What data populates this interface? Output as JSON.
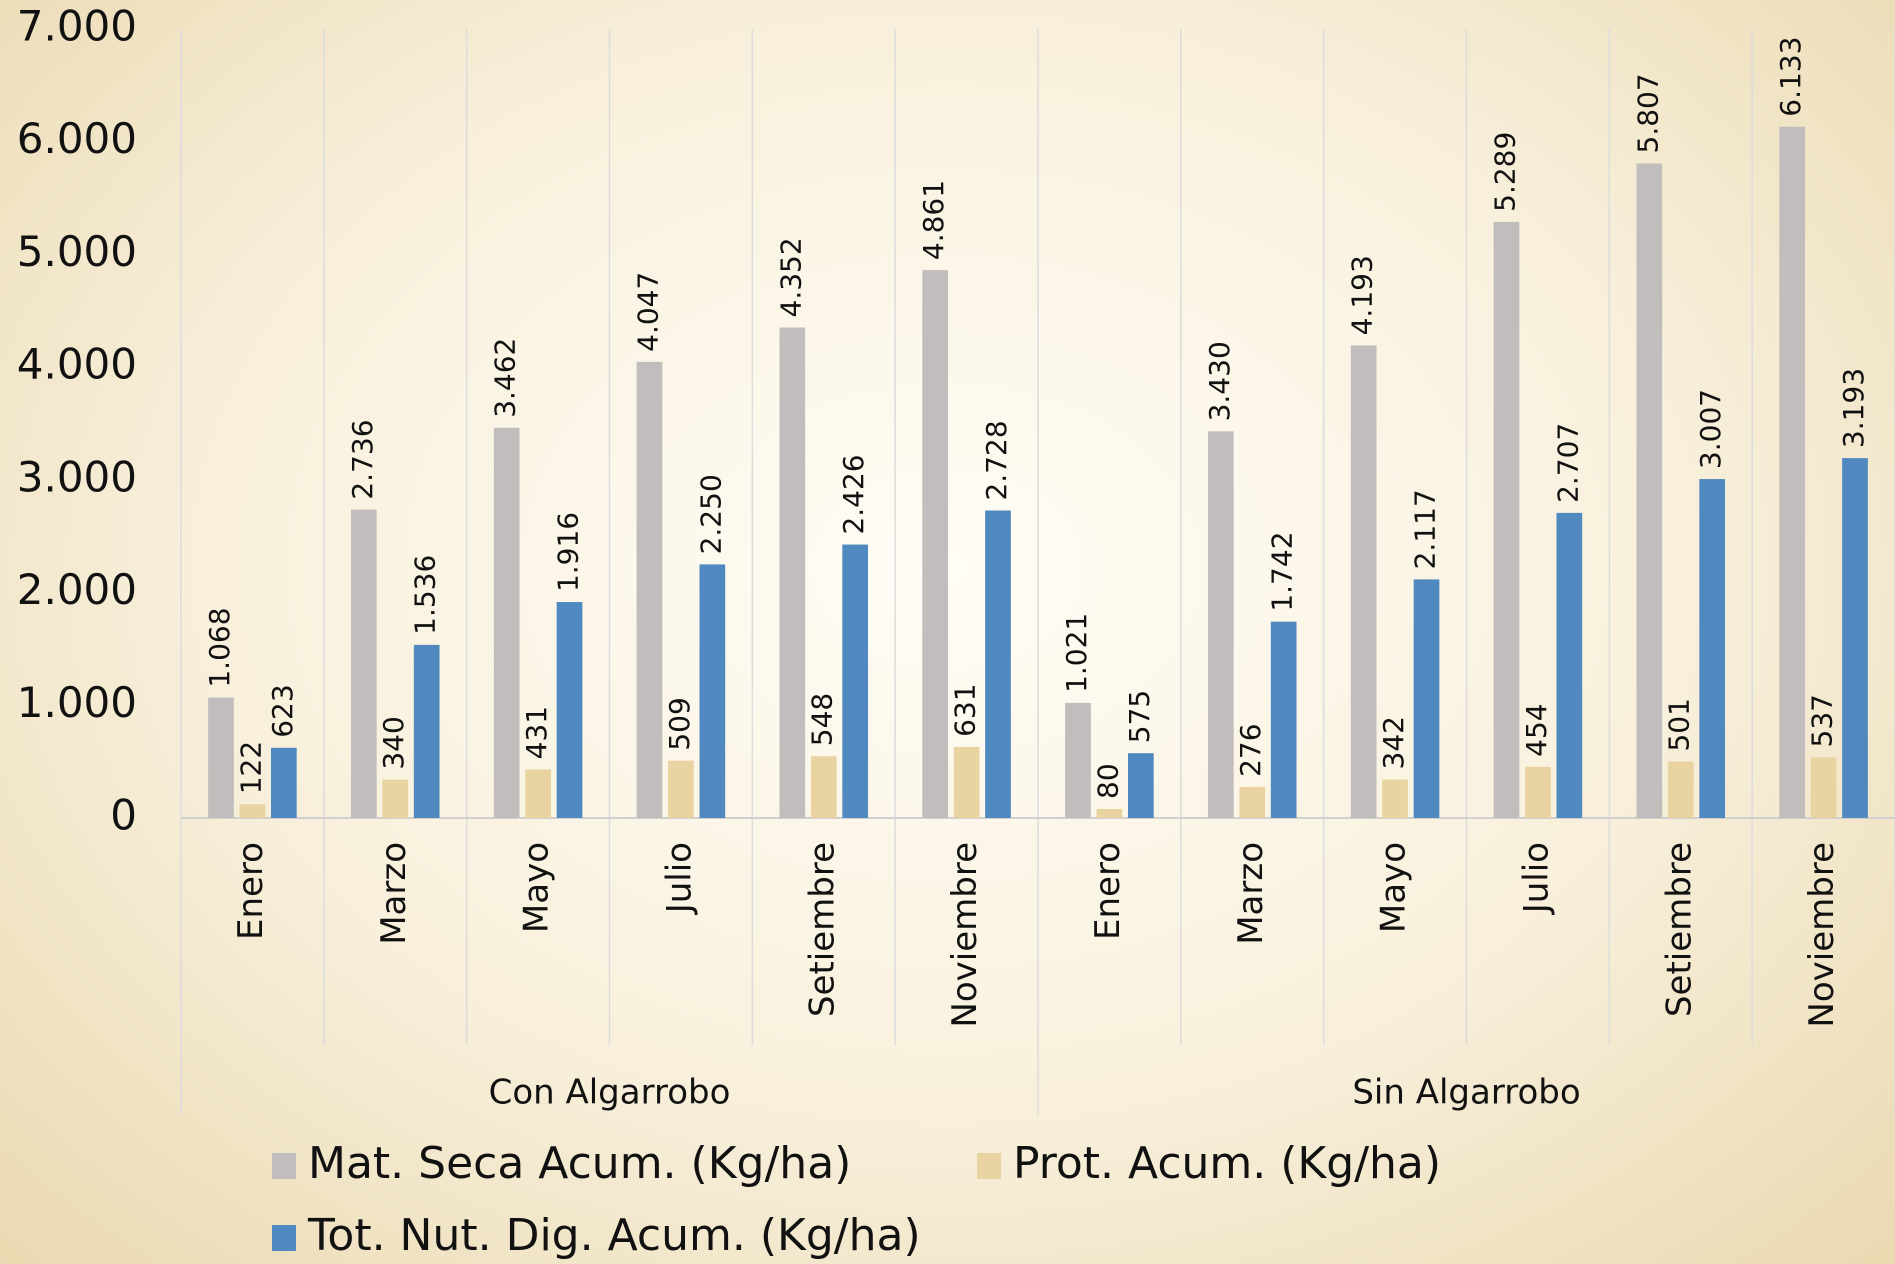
{
  "chart_data": {
    "type": "bar",
    "groups": [
      {
        "label": "Con Algarrobo",
        "categories": [
          "Enero",
          "Marzo",
          "Mayo",
          "Julio",
          "Setiembre",
          "Noviembre"
        ]
      },
      {
        "label": "Sin Algarrobo",
        "categories": [
          "Enero",
          "Marzo",
          "Mayo",
          "Julio",
          "Setiembre",
          "Noviembre"
        ]
      }
    ],
    "series": [
      {
        "name": "Mat. Seca Acum. (Kg/ha)",
        "color": "#c2bdbd",
        "values": [
          1068,
          2736,
          3462,
          4047,
          4352,
          4861,
          1021,
          3430,
          4193,
          5289,
          5807,
          6133
        ],
        "value_labels": [
          "1.068",
          "2.736",
          "3.462",
          "4.047",
          "4.352",
          "4.861",
          "1.021",
          "3.430",
          "4.193",
          "5.289",
          "5.807",
          "6.133"
        ]
      },
      {
        "name": "Prot. Acum. (Kg/ha)",
        "color": "#e9d3a0",
        "values": [
          122,
          340,
          431,
          509,
          548,
          631,
          80,
          276,
          342,
          454,
          501,
          537
        ]
      },
      {
        "name": "Tot. Nut. Dig. Acum. (Kg/ha)",
        "color": "#5089bf",
        "values": [
          623,
          1536,
          1916,
          2250,
          2426,
          2728,
          575,
          1742,
          2117,
          2707,
          3007,
          3193
        ],
        "value_labels": [
          "623",
          "1.536",
          "1.916",
          "2.250",
          "2.426",
          "2.728",
          "575",
          "1.742",
          "2.117",
          "2.707",
          "3.007",
          "3.193"
        ]
      }
    ],
    "ylim": [
      0,
      7000
    ],
    "yticks": [
      0,
      {
        "value": 1000,
        "label": "1.000"
      },
      {
        "value": 2000,
        "label": "2.000"
      },
      {
        "value": 3000,
        "label": "3.000"
      },
      {
        "value": 4000,
        "label": "4.000"
      },
      {
        "value": 5000,
        "label": "5.000"
      },
      {
        "value": 6000,
        "label": "6.000"
      },
      {
        "value": 7000,
        "label": "7.000"
      }
    ],
    "legend": "bottom"
  }
}
